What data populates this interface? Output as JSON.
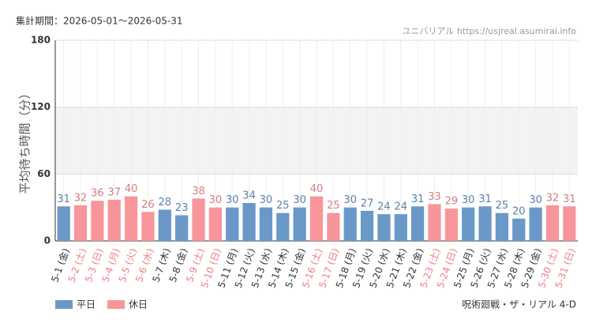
{
  "chart_data": {
    "type": "bar",
    "title": "集計期間：2026-05-01～2026-05-31",
    "source": "ユニバリアル https://usjreal.asumirai.info",
    "attraction": "呪術廻戦・ザ・リアル 4-D",
    "y_label": "平均待ち時間（分）",
    "categories": [
      "5-1 (金)",
      "5-2 (土)",
      "5-3 (日)",
      "5-4 (月)",
      "5-5 (火)",
      "5-6 (水)",
      "5-7 (木)",
      "5-8 (金)",
      "5-9 (土)",
      "5-10 (日)",
      "5-11 (月)",
      "5-12 (火)",
      "5-13 (水)",
      "5-14 (木)",
      "5-15 (金)",
      "5-16 (土)",
      "5-17 (日)",
      "5-18 (月)",
      "5-19 (火)",
      "5-20 (水)",
      "5-21 (木)",
      "5-22 (金)",
      "5-23 (土)",
      "5-24 (日)",
      "5-25 (月)",
      "5-26 (火)",
      "5-27 (水)",
      "5-28 (木)",
      "5-29 (金)",
      "5-30 (土)",
      "5-31 (日)"
    ],
    "series": [
      {
        "name": "平日",
        "color": "#6a98c8",
        "values": [
          31,
          null,
          null,
          null,
          null,
          null,
          28,
          23,
          null,
          null,
          30,
          34,
          30,
          25,
          30,
          null,
          null,
          30,
          27,
          24,
          24,
          31,
          null,
          null,
          30,
          31,
          25,
          20,
          30,
          null,
          null
        ]
      },
      {
        "name": "休日",
        "color": "#f8959a",
        "values": [
          null,
          32,
          36,
          37,
          40,
          26,
          null,
          null,
          38,
          30,
          null,
          null,
          null,
          null,
          null,
          40,
          25,
          null,
          null,
          null,
          null,
          null,
          33,
          29,
          null,
          null,
          null,
          null,
          null,
          32,
          31
        ]
      }
    ],
    "ylim": [
      0,
      180
    ],
    "yticks": [
      0,
      60,
      120,
      180
    ],
    "grid": true
  }
}
